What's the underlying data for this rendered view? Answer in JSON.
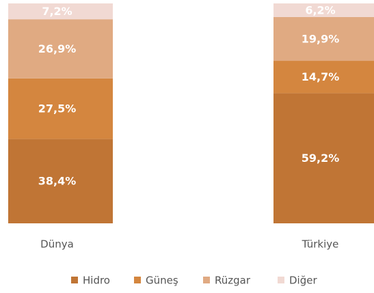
{
  "chart_data": {
    "type": "stacked_bar",
    "categories": [
      "Dünya",
      "Türkiye"
    ],
    "ylim": [
      0,
      100
    ],
    "series": [
      {
        "name": "Hidro",
        "color": "#c07535",
        "values": [
          38.4,
          59.2
        ],
        "value_labels": [
          "38,4%",
          "59,2%"
        ]
      },
      {
        "name": "Güneş",
        "color": "#d4863f",
        "values": [
          27.5,
          14.7
        ],
        "value_labels": [
          "27,5%",
          "14,7%"
        ]
      },
      {
        "name": "Rüzgar",
        "color": "#e0aa82",
        "values": [
          26.9,
          19.9
        ],
        "value_labels": [
          "26,9%",
          "19,9%"
        ]
      },
      {
        "name": "Diğer",
        "color": "#f1d9d3",
        "values": [
          7.2,
          6.2
        ],
        "value_labels": [
          "7,2%",
          "6,2%"
        ]
      }
    ],
    "legend": "bottom"
  }
}
